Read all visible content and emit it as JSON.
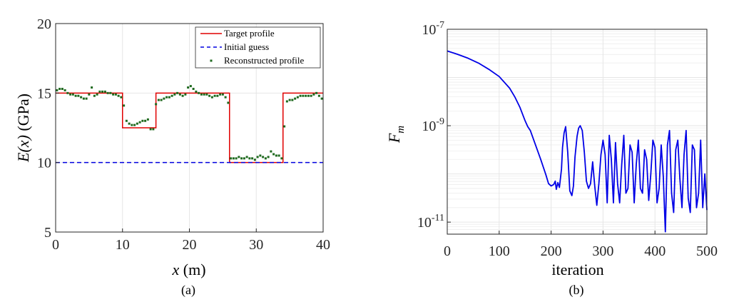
{
  "chart_data": [
    {
      "type": "line",
      "panel_label": "(a)",
      "xlabel_var": "x",
      "xlabel_unit": " (m)",
      "ylabel_var": "E(x)",
      "ylabel_unit": " (GPa)",
      "xlim": [
        0,
        40
      ],
      "ylim": [
        5,
        20
      ],
      "xticks": [
        0,
        10,
        20,
        30,
        40
      ],
      "yticks": [
        5,
        10,
        15,
        20
      ],
      "grid": true,
      "legend_position": "top-right",
      "series": [
        {
          "name": "Target profile",
          "style": "solid",
          "color": "#e00000",
          "x": [
            0,
            10,
            10,
            15,
            15,
            26,
            26,
            34,
            34,
            40
          ],
          "y": [
            15,
            15,
            12.5,
            12.5,
            15,
            15,
            10,
            10,
            15,
            15
          ]
        },
        {
          "name": "Initial guess",
          "style": "dashed",
          "color": "#0000e0",
          "x": [
            0,
            40
          ],
          "y": [
            10,
            10
          ]
        },
        {
          "name": "Reconstructed profile",
          "style": "markers",
          "color": "#1f6a1f",
          "x": [
            0.2,
            0.6,
            1.0,
            1.4,
            1.8,
            2.2,
            2.6,
            3.0,
            3.4,
            3.8,
            4.2,
            4.6,
            5.0,
            5.4,
            5.8,
            6.2,
            6.6,
            7.0,
            7.4,
            7.8,
            8.2,
            8.6,
            9.0,
            9.4,
            9.8,
            10.2,
            10.6,
            11.0,
            11.4,
            11.8,
            12.2,
            12.6,
            13.0,
            13.4,
            13.8,
            14.2,
            14.6,
            15.0,
            15.4,
            15.8,
            16.2,
            16.6,
            17.0,
            17.4,
            17.8,
            18.2,
            18.6,
            19.0,
            19.4,
            19.8,
            20.2,
            20.6,
            21.0,
            21.4,
            21.8,
            22.2,
            22.6,
            23.0,
            23.4,
            23.8,
            24.2,
            24.6,
            25.0,
            25.4,
            25.8,
            26.2,
            26.6,
            27.0,
            27.4,
            27.8,
            28.2,
            28.6,
            29.0,
            29.4,
            29.8,
            30.2,
            30.6,
            31.0,
            31.4,
            31.8,
            32.2,
            32.6,
            33.0,
            33.4,
            33.8,
            34.2,
            34.6,
            35.0,
            35.4,
            35.8,
            36.2,
            36.6,
            37.0,
            37.4,
            37.8,
            38.2,
            38.6,
            39.0,
            39.4,
            39.8
          ],
          "y": [
            15.2,
            15.3,
            15.3,
            15.2,
            15.0,
            14.9,
            14.9,
            14.8,
            14.8,
            14.7,
            14.6,
            14.6,
            14.9,
            15.4,
            14.8,
            14.9,
            15.1,
            15.1,
            15.1,
            15.0,
            15.0,
            14.9,
            14.9,
            14.8,
            14.7,
            14.1,
            13.0,
            12.8,
            12.7,
            12.7,
            12.8,
            12.9,
            13.0,
            13.0,
            13.1,
            12.4,
            12.4,
            14.2,
            14.5,
            14.5,
            14.6,
            14.7,
            14.7,
            14.8,
            14.9,
            15.0,
            14.9,
            14.8,
            14.9,
            15.4,
            15.5,
            15.3,
            15.1,
            15.0,
            14.9,
            14.9,
            14.9,
            14.8,
            14.7,
            14.8,
            14.8,
            14.9,
            14.9,
            14.7,
            14.3,
            10.3,
            10.3,
            10.3,
            10.4,
            10.3,
            10.3,
            10.4,
            10.3,
            10.3,
            10.2,
            10.4,
            10.5,
            10.4,
            10.3,
            10.4,
            10.8,
            10.6,
            10.5,
            10.5,
            10.3,
            12.6,
            14.4,
            14.5,
            14.5,
            14.6,
            14.7,
            14.8,
            14.8,
            14.8,
            14.8,
            14.8,
            14.9,
            15.0,
            14.8,
            14.6
          ]
        }
      ]
    },
    {
      "type": "line",
      "panel_label": "(b)",
      "xlabel": "iteration",
      "ylabel_var": "F",
      "ylabel_sub": "m",
      "xlim": [
        0,
        500
      ],
      "ylim_log10": [
        -11.25,
        -7
      ],
      "yscale": "log",
      "xticks": [
        0,
        100,
        200,
        300,
        400,
        500
      ],
      "ytick_base": "10",
      "ytick_exponents": [
        "-7",
        "-9",
        "-11"
      ],
      "grid": true,
      "series": [
        {
          "color": "#0000e6",
          "x": [
            0,
            20,
            40,
            60,
            80,
            100,
            120,
            130,
            140,
            150,
            155,
            160,
            170,
            180,
            190,
            195,
            200,
            205,
            208,
            210,
            213,
            216,
            220,
            222,
            225,
            228,
            232,
            236,
            240,
            243,
            246,
            250,
            253,
            256,
            260,
            264,
            268,
            272,
            276,
            280,
            284,
            288,
            292,
            296,
            300,
            304,
            308,
            312,
            316,
            320,
            324,
            328,
            332,
            336,
            340,
            344,
            348,
            352,
            356,
            360,
            364,
            368,
            372,
            376,
            380,
            384,
            388,
            392,
            396,
            400,
            404,
            408,
            412,
            416,
            420,
            424,
            428,
            432,
            436,
            440,
            444,
            448,
            452,
            456,
            460,
            464,
            468,
            472,
            476,
            480,
            484,
            488,
            492,
            496,
            500
          ],
          "y": [
            -7.45,
            -7.52,
            -7.6,
            -7.7,
            -7.83,
            -7.98,
            -8.22,
            -8.4,
            -8.62,
            -8.9,
            -9.02,
            -9.1,
            -9.4,
            -9.7,
            -10.02,
            -10.2,
            -10.25,
            -10.22,
            -10.15,
            -10.32,
            -10.18,
            -10.28,
            -9.9,
            -9.45,
            -9.15,
            -9.02,
            -9.55,
            -10.35,
            -10.45,
            -10.25,
            -9.65,
            -9.22,
            -9.05,
            -9.0,
            -9.1,
            -9.55,
            -10.15,
            -10.3,
            -10.2,
            -9.75,
            -10.25,
            -10.65,
            -10.2,
            -9.6,
            -9.3,
            -9.6,
            -10.6,
            -9.2,
            -9.7,
            -10.6,
            -9.35,
            -10.2,
            -10.6,
            -9.8,
            -9.2,
            -10.4,
            -10.3,
            -9.4,
            -9.55,
            -10.6,
            -9.8,
            -9.3,
            -10.3,
            -10.4,
            -9.5,
            -9.7,
            -10.55,
            -10.0,
            -9.3,
            -9.45,
            -10.6,
            -10.3,
            -9.4,
            -10.05,
            -11.2,
            -9.4,
            -9.1,
            -10.4,
            -10.8,
            -9.5,
            -9.3,
            -10.1,
            -10.7,
            -9.6,
            -9.1,
            -10.5,
            -10.8,
            -9.4,
            -9.5,
            -10.7,
            -10.4,
            -9.3,
            -10.7,
            -10.0,
            -10.75
          ]
        }
      ]
    }
  ]
}
